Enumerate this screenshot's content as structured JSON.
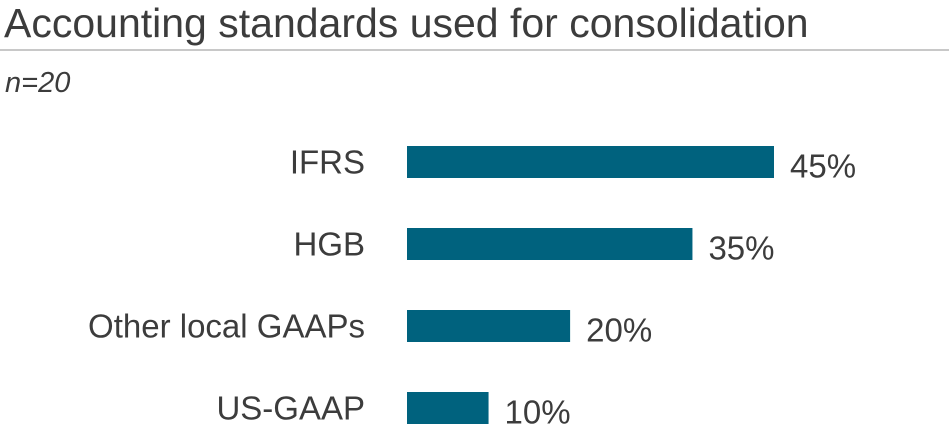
{
  "title": "Accounting standards used for consolidation",
  "subtitle": "n=20",
  "colors": {
    "bar": "#00627e",
    "label": "#3c3c3c",
    "rule": "#c8c8c8"
  },
  "chart_data": {
    "type": "bar",
    "orientation": "horizontal",
    "title": "Accounting standards used for consolidation",
    "subtitle": "n=20",
    "categories": [
      "IFRS",
      "HGB",
      "Other local GAAPs",
      "US-GAAP"
    ],
    "values": [
      45,
      35,
      20,
      10
    ],
    "value_labels": [
      "45%",
      "35%",
      "20%",
      "10%"
    ],
    "unit": "%",
    "xlim": [
      0,
      45
    ],
    "grid": false,
    "legend": "none"
  }
}
